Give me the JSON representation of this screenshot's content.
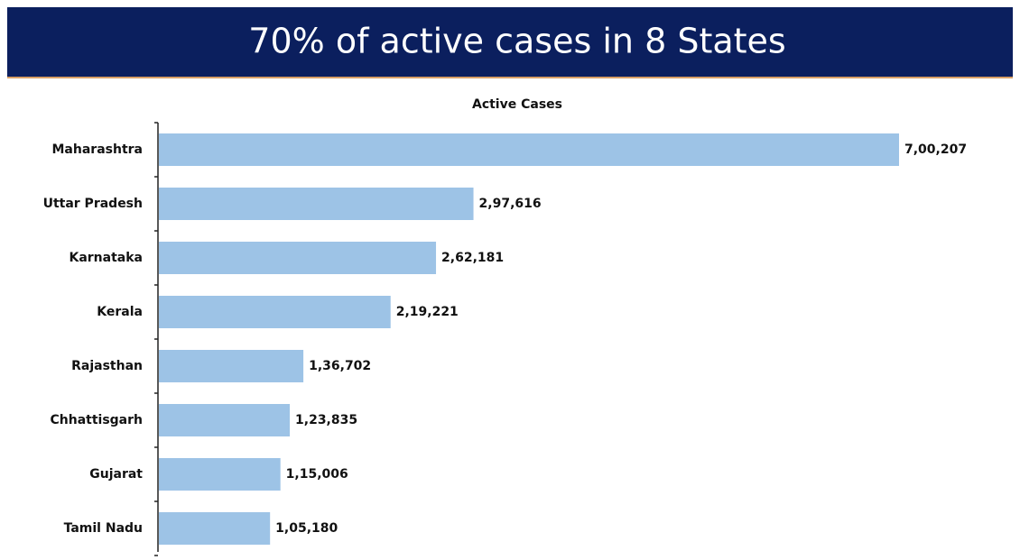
{
  "chart_data": {
    "type": "bar",
    "orientation": "horizontal",
    "title": "70% of active cases in 8 States",
    "subtitle": "Active Cases",
    "categories": [
      "Maharashtra",
      "Uttar Pradesh",
      "Karnataka",
      "Kerala",
      "Rajasthan",
      "Chhattisgarh",
      "Gujarat",
      "Tamil Nadu"
    ],
    "values": [
      700207,
      297616,
      262181,
      219221,
      136702,
      123835,
      115006,
      105180
    ],
    "value_labels": [
      "7,00,207",
      "2,97,616",
      "2,62,181",
      "2,19,221",
      "1,36,702",
      "1,23,835",
      "1,15,006",
      "1,05,180"
    ],
    "color": "#9dc3e6",
    "banner_color": "#0b1f5e"
  }
}
